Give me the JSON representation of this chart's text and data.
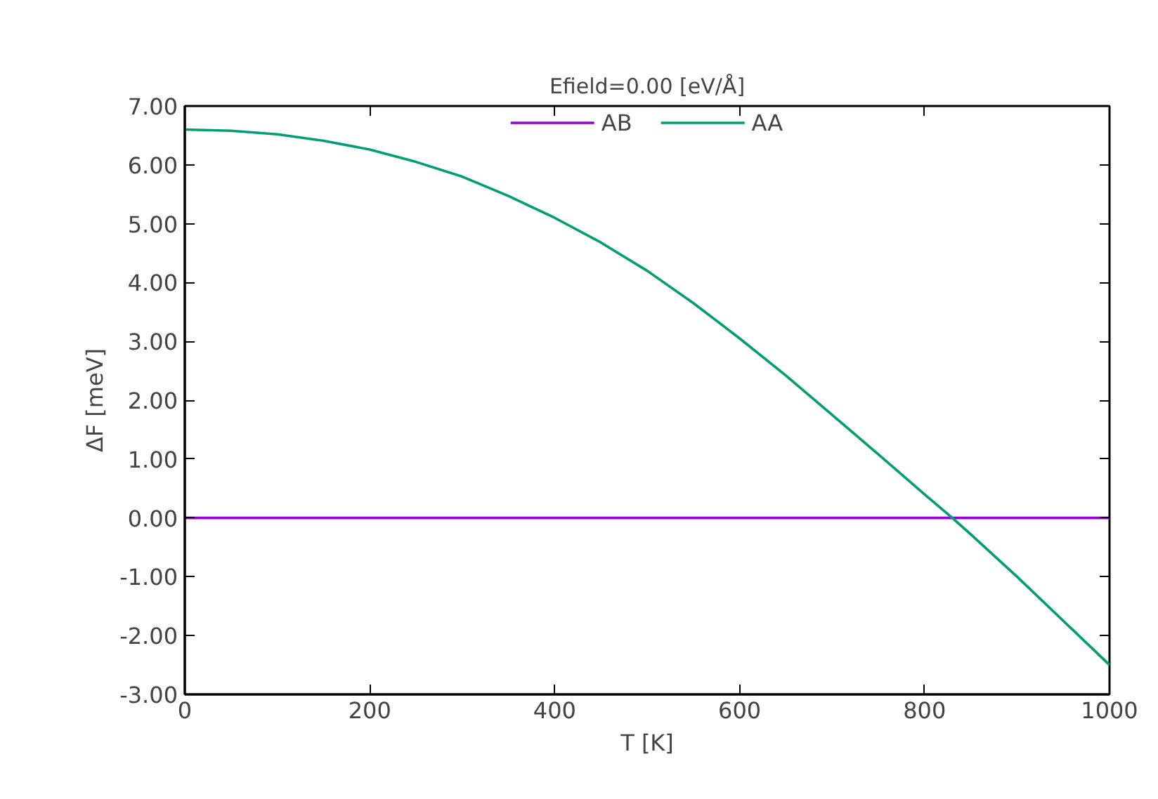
{
  "chart_data": {
    "type": "line",
    "title": "Efield=0.00 [eV/Å]",
    "xlabel": "T [K]",
    "ylabel": "ΔF [meV]",
    "xlim": [
      0,
      1000
    ],
    "xticks": [
      0,
      200,
      400,
      600,
      800,
      1000
    ],
    "ylim": [
      -3,
      7
    ],
    "yticks": [
      {
        "value": -3,
        "label": "-3.00"
      },
      {
        "value": -2,
        "label": "-2.00"
      },
      {
        "value": -1,
        "label": "-1.00"
      },
      {
        "value": 0,
        "label": "0.00"
      },
      {
        "value": 1,
        "label": "1.00"
      },
      {
        "value": 2,
        "label": "2.00"
      },
      {
        "value": 3,
        "label": "3.00"
      },
      {
        "value": 4,
        "label": "4.00"
      },
      {
        "value": 5,
        "label": "5.00"
      },
      {
        "value": 6,
        "label": "6.00"
      },
      {
        "value": 7,
        "label": "7.00"
      }
    ],
    "x": [
      0,
      50,
      100,
      150,
      200,
      250,
      300,
      350,
      400,
      450,
      500,
      550,
      600,
      650,
      700,
      750,
      800,
      830,
      850,
      900,
      950,
      1000
    ],
    "series": [
      {
        "name": "AB",
        "color": "#9400d3",
        "values": [
          0,
          0,
          0,
          0,
          0,
          0,
          0,
          0,
          0,
          0,
          0,
          0,
          0,
          0,
          0,
          0,
          0,
          0,
          0,
          0,
          0,
          0
        ]
      },
      {
        "name": "AA",
        "color": "#009e73",
        "values": [
          6.6,
          6.58,
          6.52,
          6.41,
          6.26,
          6.05,
          5.8,
          5.47,
          5.1,
          4.68,
          4.2,
          3.65,
          3.05,
          2.42,
          1.75,
          1.08,
          0.4,
          0.0,
          -0.28,
          -1.0,
          -1.75,
          -2.5
        ]
      }
    ],
    "legend": "top",
    "grid": false,
    "marker": "none",
    "line_style": "solid"
  }
}
